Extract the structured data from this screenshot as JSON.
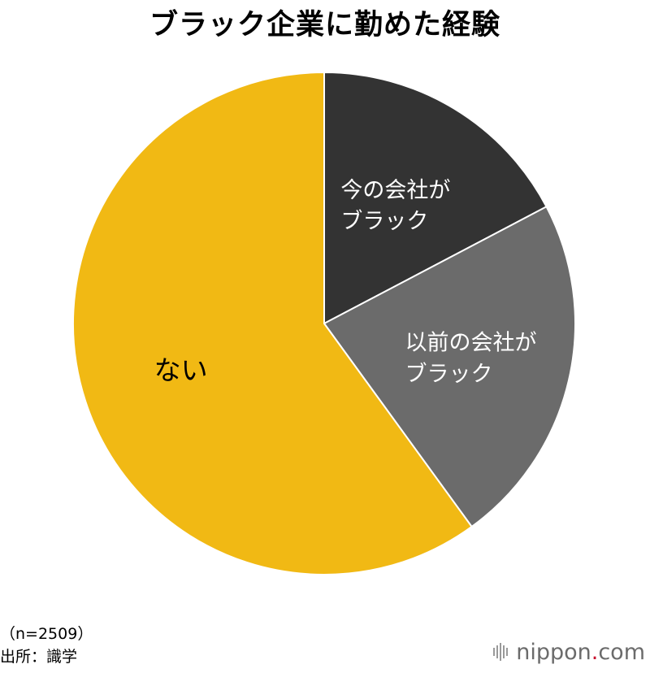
{
  "chart_data": {
    "type": "pie",
    "title": "ブラック企業に勤めた経験",
    "slices": [
      {
        "label": [
          "今の会社が",
          "ブラック"
        ],
        "value": 17.3,
        "color": "#333333",
        "text_color": "#ffffff"
      },
      {
        "label": [
          "以前の会社が",
          "ブラック"
        ],
        "value": 22.7,
        "color": "#6b6b6b",
        "text_color": "#ffffff"
      },
      {
        "label": [
          "ない"
        ],
        "value": 60.0,
        "color": "#f1b914",
        "text_color": "#000000"
      }
    ]
  },
  "footer": {
    "sample_size": "（n=2509）",
    "source": "出所：識学",
    "brand": {
      "name": "nippon",
      "dot": ".",
      "suffix": "com"
    }
  }
}
